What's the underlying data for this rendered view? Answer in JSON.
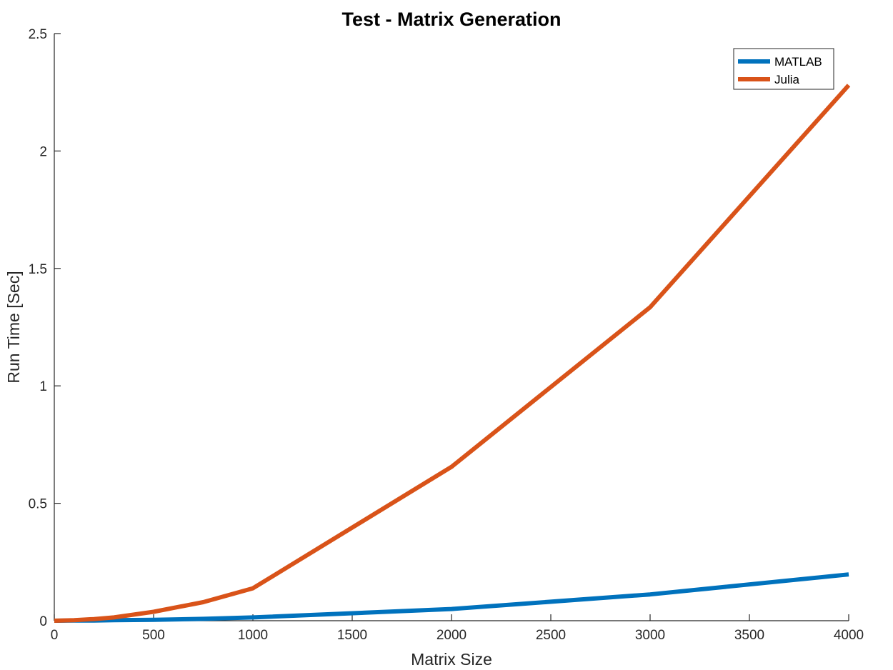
{
  "chart_data": {
    "type": "line",
    "title": "Test - Matrix Generation",
    "xlabel": "Matrix Size",
    "ylabel": "Run Time  [Sec]",
    "xlim": [
      0,
      4000
    ],
    "ylim": [
      0,
      2.5
    ],
    "xticks": [
      "0",
      "500",
      "1000",
      "1500",
      "2000",
      "2500",
      "3000",
      "3500",
      "4000"
    ],
    "yticks": [
      "0",
      "0.5",
      "1",
      "1.5",
      "2",
      "2.5"
    ],
    "grid": false,
    "legend_position": "top-right",
    "series": [
      {
        "name": "MATLAB",
        "color": "#0072BD",
        "x": [
          0,
          100,
          200,
          300,
          500,
          750,
          1000,
          2000,
          3000,
          4000
        ],
        "y": [
          0,
          0.0005,
          0.001,
          0.002,
          0.004,
          0.008,
          0.014,
          0.05,
          0.112,
          0.197
        ]
      },
      {
        "name": "Julia",
        "color": "#D95319",
        "x": [
          0,
          100,
          200,
          300,
          500,
          750,
          1000,
          2000,
          3000,
          4000
        ],
        "y": [
          0,
          0.002,
          0.007,
          0.014,
          0.038,
          0.079,
          0.138,
          0.655,
          1.335,
          2.28
        ]
      }
    ]
  }
}
